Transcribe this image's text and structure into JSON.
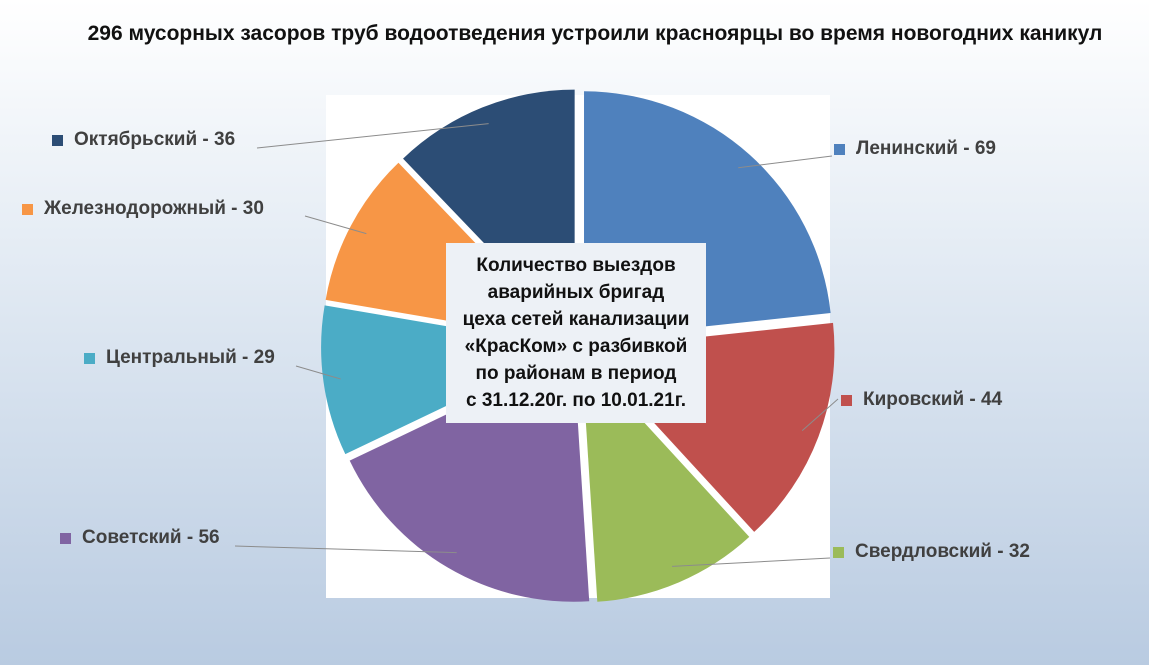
{
  "title": "296  мусорных засоров труб водоотведения устроили красноярцы во время новогодних каникул",
  "center_label": "Количество выездов\nаварийных бригад\nцеха сетей канализации\n«КрасКом» с разбивкой\nпо районам в период\nс 31.12.20г. по 10.01.21г.",
  "chart_data": {
    "type": "pie",
    "total": 296,
    "slices": [
      {
        "label": "Ленинский - 69",
        "value": 69,
        "color": "#4f81bd"
      },
      {
        "label": "Кировский - 44",
        "value": 44,
        "color": "#c0504d"
      },
      {
        "label": "Свердловский - 32",
        "value": 32,
        "color": "#9bbb59"
      },
      {
        "label": "Советский - 56",
        "value": 56,
        "color": "#8064a2"
      },
      {
        "label": "Центральный - 29",
        "value": 29,
        "color": "#4bacc6"
      },
      {
        "label": "Железнодорожный - 30",
        "value": 30,
        "color": "#f79646"
      },
      {
        "label": "Октябрьский - 36",
        "value": 36,
        "color": "#2c4d75"
      }
    ],
    "exploded": true,
    "legend": "around-pie"
  }
}
